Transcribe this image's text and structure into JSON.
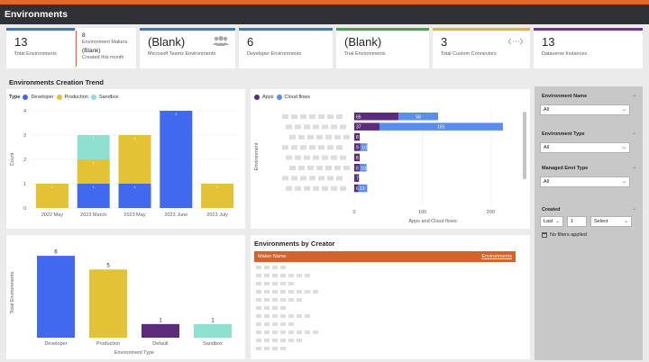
{
  "header": {
    "title": "Environments"
  },
  "cards": [
    {
      "value": "13",
      "label": "Total Environments",
      "accent": "#4472c4"
    },
    {
      "value": "8",
      "label": "Environment Makers",
      "value2": "(Blank)",
      "label2": "Created this month",
      "accent": "#e2672b"
    },
    {
      "value": "(Blank)",
      "label": "Microsoft Teams Environments",
      "icon": "people-icon",
      "accent": "#4472c4"
    },
    {
      "value": "6",
      "label": "Developer Environments",
      "accent": "#4472c4"
    },
    {
      "value": "(Blank)",
      "label": "Trial Environments",
      "accent": "#4a9e5c"
    },
    {
      "value": "3",
      "label": "Total Custom Connectors",
      "icon": "connector-icon",
      "accent": "#e6b325"
    },
    {
      "value": "13",
      "label": "Dataverse Instances",
      "accent": "#7030a0"
    }
  ],
  "section_title": "Environments Creation Trend",
  "colors": {
    "developer": "#4169f0",
    "production": "#e3c236",
    "sandbox": "#8fe0ce",
    "apps": "#5c2c7a",
    "cloud_flows": "#5b8def",
    "default": "#5c2c7a",
    "maker_header": "#d4622a"
  },
  "chart_data": [
    {
      "type": "bar",
      "stacked": true,
      "legend_title": "Type",
      "legend_position": "top-left",
      "ylabel": "Count",
      "xlabel": "",
      "ylim": [
        0,
        4
      ],
      "yticks": [
        "0",
        "1",
        "2",
        "3",
        "4"
      ],
      "categories": [
        "2022 May",
        "2023 March",
        "2023 May",
        "2023 June",
        "2023 July"
      ],
      "series": [
        {
          "name": "Developer",
          "values": [
            0,
            1,
            1,
            4,
            0
          ]
        },
        {
          "name": "Production",
          "values": [
            1,
            1,
            2,
            0,
            1
          ]
        },
        {
          "name": "Sandbox",
          "values": [
            0,
            1,
            0,
            0,
            0
          ]
        }
      ],
      "total_labels": [
        "1",
        "3",
        "3",
        "4",
        "1"
      ]
    },
    {
      "type": "bar",
      "orientation": "horizontal",
      "ylabel": "Environment",
      "xlabel": "Apps and Cloud flows",
      "xlim": [
        0,
        230
      ],
      "xticks": [
        "0",
        "100",
        "200"
      ],
      "legend_position": "top-left",
      "series": [
        {
          "name": "Apps",
          "values": [
            65,
            37,
            8,
            9,
            8,
            8,
            7,
            6
          ]
        },
        {
          "name": "Cloud flows",
          "values": [
            58,
            181,
            0,
            10,
            0,
            10,
            0,
            13
          ]
        }
      ],
      "labels": [
        {
          "apps": "65",
          "flows": "58"
        },
        {
          "apps": "37",
          "flows": "181"
        },
        {
          "apps": "8",
          "flows": ""
        },
        {
          "apps": "9",
          "flows": "10"
        },
        {
          "apps": "8",
          "flows": ""
        },
        {
          "apps": "8",
          "flows": "10"
        },
        {
          "apps": "7",
          "flows": ""
        },
        {
          "apps": "6",
          "flows": "13"
        }
      ]
    },
    {
      "type": "bar",
      "ylabel": "Total Environments",
      "xlabel": "Environment Type",
      "ylim": [
        0,
        6.6
      ],
      "categories": [
        "Developer",
        "Production",
        "Default",
        "Sandbox"
      ],
      "values": [
        6,
        5,
        1,
        1
      ],
      "value_labels": [
        "6",
        "5",
        "1",
        "1"
      ]
    }
  ],
  "creator_table": {
    "title": "Environments by Creator",
    "col1": "Maker Name",
    "col2": "Environments"
  },
  "filters": {
    "env_name": {
      "label": "Environment Name",
      "value": "All"
    },
    "env_type": {
      "label": "Environment Type",
      "value": "All"
    },
    "managed": {
      "label": "Managed Envt Type",
      "value": "All"
    },
    "created": {
      "label": "Created",
      "period": "Last",
      "count": "1",
      "unit": "Select",
      "status": "No filters applied"
    }
  }
}
